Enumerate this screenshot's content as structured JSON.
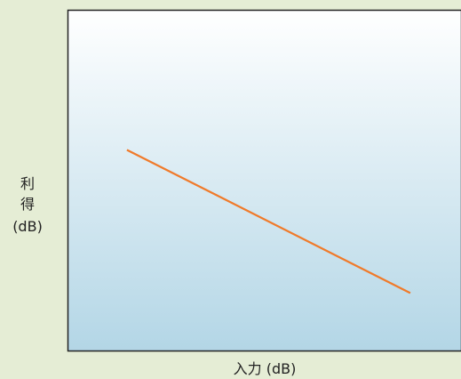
{
  "chart_data": {
    "type": "line",
    "title": "",
    "xlabel": "入力 (dB)",
    "ylabel_lines": [
      "利",
      "得",
      "(dB)"
    ],
    "grid": false,
    "legend": "none",
    "tick_labels": "none",
    "xlim": [
      0,
      1
    ],
    "ylim": [
      0,
      1
    ],
    "series": [
      {
        "color": "#f07a2a",
        "x": [
          0.15,
          0.87
        ],
        "y": [
          0.59,
          0.17
        ]
      }
    ],
    "colors": {
      "page_background": "#e5edd5",
      "plot_gradient_top": "#ffffff",
      "plot_gradient_bottom": "#b3d6e6",
      "plot_border": "#222222"
    }
  }
}
